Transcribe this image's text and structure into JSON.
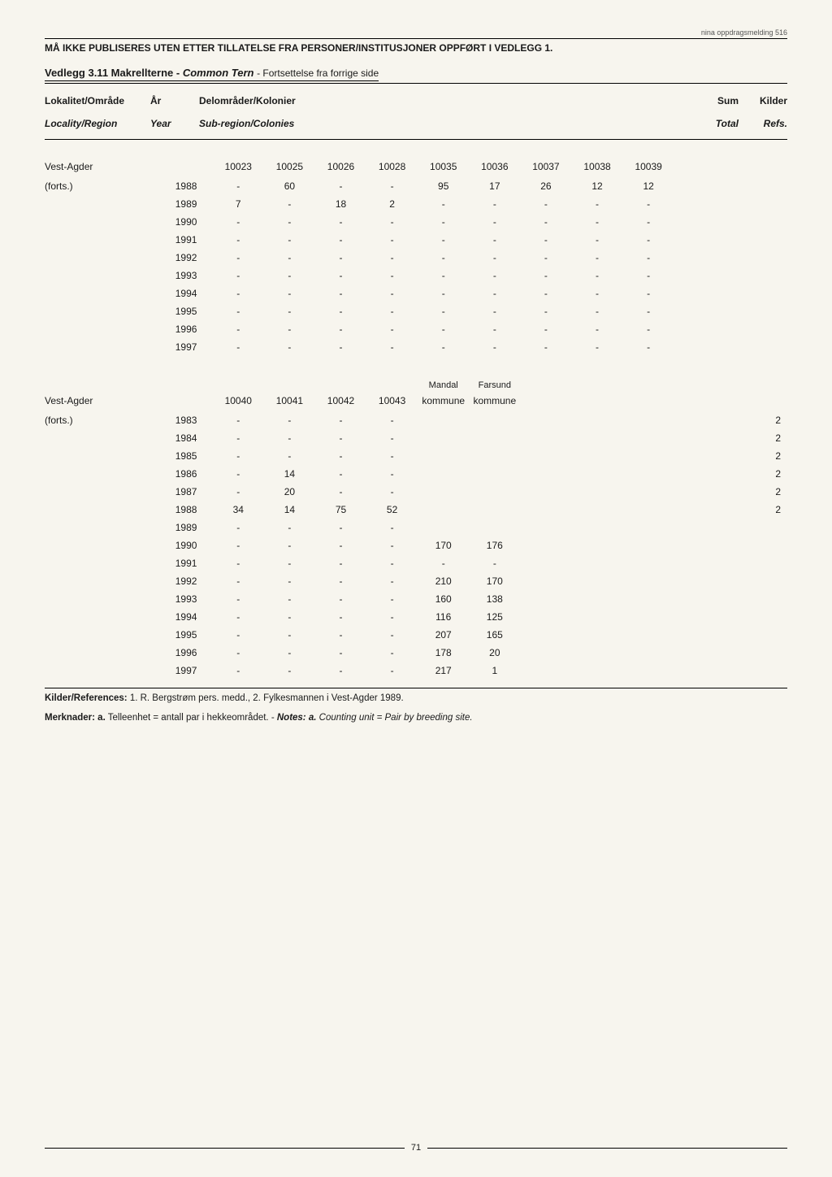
{
  "topNote": "nina oppdragsmelding 516",
  "restriction": "MÅ IKKE PUBLISERES UTEN ETTER TILLATELSE FRA PERSONER/INSTITUSJONER OPPFØRT I VEDLEGG 1.",
  "vedlegg": {
    "label": "Vedlegg 3.11 Makrellterne -",
    "species": "Common Tern",
    "cont": "- Fortsettelse fra forrige side"
  },
  "headers": {
    "loc_no": "Lokalitet/Område",
    "year_no": "År",
    "sub_no": "Delområder/Kolonier",
    "sum_no": "Sum",
    "kilder_no": "Kilder",
    "loc_en": "Locality/Region",
    "year_en": "Year",
    "sub_en": "Sub-region/Colonies",
    "sum_en": "Total",
    "kilder_en": "Refs."
  },
  "section1": {
    "locality": "Vest-Agder",
    "locality_note": "(forts.)",
    "columns": [
      "10023",
      "10025",
      "10026",
      "10028",
      "10035",
      "10036",
      "10037",
      "10038",
      "10039"
    ],
    "rows": [
      {
        "year": "1988",
        "vals": [
          "-",
          "60",
          "-",
          "-",
          "95",
          "17",
          "26",
          "12",
          "12"
        ],
        "sum": "",
        "ref": ""
      },
      {
        "year": "1989",
        "vals": [
          "7",
          "-",
          "18",
          "2",
          "-",
          "-",
          "-",
          "-",
          "-"
        ],
        "sum": "",
        "ref": ""
      },
      {
        "year": "1990",
        "vals": [
          "-",
          "-",
          "-",
          "-",
          "-",
          "-",
          "-",
          "-",
          "-"
        ],
        "sum": "",
        "ref": ""
      },
      {
        "year": "1991",
        "vals": [
          "-",
          "-",
          "-",
          "-",
          "-",
          "-",
          "-",
          "-",
          "-"
        ],
        "sum": "",
        "ref": ""
      },
      {
        "year": "1992",
        "vals": [
          "-",
          "-",
          "-",
          "-",
          "-",
          "-",
          "-",
          "-",
          "-"
        ],
        "sum": "",
        "ref": ""
      },
      {
        "year": "1993",
        "vals": [
          "-",
          "-",
          "-",
          "-",
          "-",
          "-",
          "-",
          "-",
          "-"
        ],
        "sum": "",
        "ref": ""
      },
      {
        "year": "1994",
        "vals": [
          "-",
          "-",
          "-",
          "-",
          "-",
          "-",
          "-",
          "-",
          "-"
        ],
        "sum": "",
        "ref": ""
      },
      {
        "year": "1995",
        "vals": [
          "-",
          "-",
          "-",
          "-",
          "-",
          "-",
          "-",
          "-",
          "-"
        ],
        "sum": "",
        "ref": ""
      },
      {
        "year": "1996",
        "vals": [
          "-",
          "-",
          "-",
          "-",
          "-",
          "-",
          "-",
          "-",
          "-"
        ],
        "sum": "",
        "ref": ""
      },
      {
        "year": "1997",
        "vals": [
          "-",
          "-",
          "-",
          "-",
          "-",
          "-",
          "-",
          "-",
          "-"
        ],
        "sum": "",
        "ref": ""
      }
    ]
  },
  "section2": {
    "locality": "Vest-Agder",
    "locality_note": "(forts.)",
    "subheaders": [
      "",
      "",
      "",
      "",
      "Mandal",
      "Farsund"
    ],
    "columns": [
      "10040",
      "10041",
      "10042",
      "10043",
      "kommune",
      "kommune"
    ],
    "rows": [
      {
        "year": "1983",
        "vals": [
          "-",
          "-",
          "-",
          "-",
          "",
          ""
        ],
        "ref": "2"
      },
      {
        "year": "1984",
        "vals": [
          "-",
          "-",
          "-",
          "-",
          "",
          ""
        ],
        "ref": "2"
      },
      {
        "year": "1985",
        "vals": [
          "-",
          "-",
          "-",
          "-",
          "",
          ""
        ],
        "ref": "2"
      },
      {
        "year": "1986",
        "vals": [
          "-",
          "14",
          "-",
          "-",
          "",
          ""
        ],
        "ref": "2"
      },
      {
        "year": "1987",
        "vals": [
          "-",
          "20",
          "-",
          "-",
          "",
          ""
        ],
        "ref": "2"
      },
      {
        "year": "1988",
        "vals": [
          "34",
          "14",
          "75",
          "52",
          "",
          ""
        ],
        "ref": "2"
      },
      {
        "year": "1989",
        "vals": [
          "-",
          "-",
          "-",
          "-",
          "",
          ""
        ],
        "ref": ""
      },
      {
        "year": "1990",
        "vals": [
          "-",
          "-",
          "-",
          "-",
          "170",
          "176"
        ],
        "ref": ""
      },
      {
        "year": "1991",
        "vals": [
          "-",
          "-",
          "-",
          "-",
          "-",
          "-"
        ],
        "ref": ""
      },
      {
        "year": "1992",
        "vals": [
          "-",
          "-",
          "-",
          "-",
          "210",
          "170"
        ],
        "ref": ""
      },
      {
        "year": "1993",
        "vals": [
          "-",
          "-",
          "-",
          "-",
          "160",
          "138"
        ],
        "ref": ""
      },
      {
        "year": "1994",
        "vals": [
          "-",
          "-",
          "-",
          "-",
          "116",
          "125"
        ],
        "ref": ""
      },
      {
        "year": "1995",
        "vals": [
          "-",
          "-",
          "-",
          "-",
          "207",
          "165"
        ],
        "ref": ""
      },
      {
        "year": "1996",
        "vals": [
          "-",
          "-",
          "-",
          "-",
          "178",
          "20"
        ],
        "ref": ""
      },
      {
        "year": "1997",
        "vals": [
          "-",
          "-",
          "-",
          "-",
          "217",
          "1"
        ],
        "ref": ""
      }
    ]
  },
  "references": {
    "label": "Kilder/References:",
    "text": " 1. R. Bergstrøm pers. medd., 2. Fylkesmannen i Vest-Agder 1989."
  },
  "notes": {
    "label": "Merknader: a.",
    "text_no": " Telleenhet = antall par i hekkeområdet. - ",
    "label_en": "Notes: a.",
    "text_en": " Counting unit = Pair by breeding site."
  },
  "pageNumber": "71"
}
